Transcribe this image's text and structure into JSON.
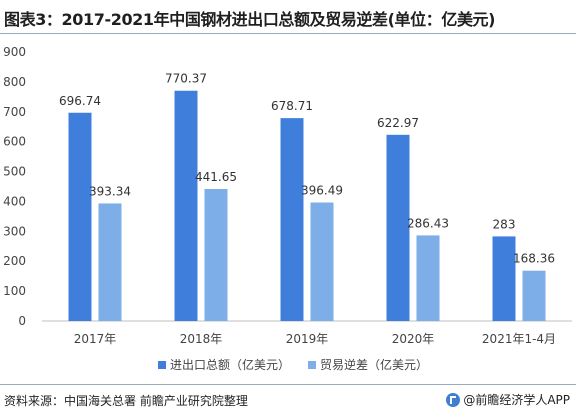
{
  "title": "图表3：2017-2021年中国钢材进出口总额及贸易逆差(单位：亿美元)",
  "footer": {
    "source": "资料来源：中国海关总署 前瞻产业研究院整理",
    "brand": "@前瞻经济学人APP"
  },
  "chart_data": {
    "type": "bar",
    "categories": [
      "2017年",
      "2018年",
      "2019年",
      "2020年",
      "2021年1-4月"
    ],
    "series": [
      {
        "name": "进出口总额（亿美元）",
        "values": [
          696.74,
          770.37,
          678.71,
          622.97,
          283
        ],
        "labels": [
          "696.74",
          "770.37",
          "678.71",
          "622.97",
          "283"
        ],
        "color": "#3f7fdb"
      },
      {
        "name": "贸易逆差（亿美元）",
        "values": [
          393.34,
          441.65,
          396.49,
          286.43,
          168.36
        ],
        "labels": [
          "393.34",
          "441.65",
          "396.49",
          "286.43",
          "168.36"
        ],
        "color": "#7eaee8"
      }
    ],
    "ylim": [
      0,
      900
    ],
    "yticks": [
      0,
      100,
      200,
      300,
      400,
      500,
      600,
      700,
      800,
      900
    ],
    "legend": "bottom",
    "grid": false
  }
}
